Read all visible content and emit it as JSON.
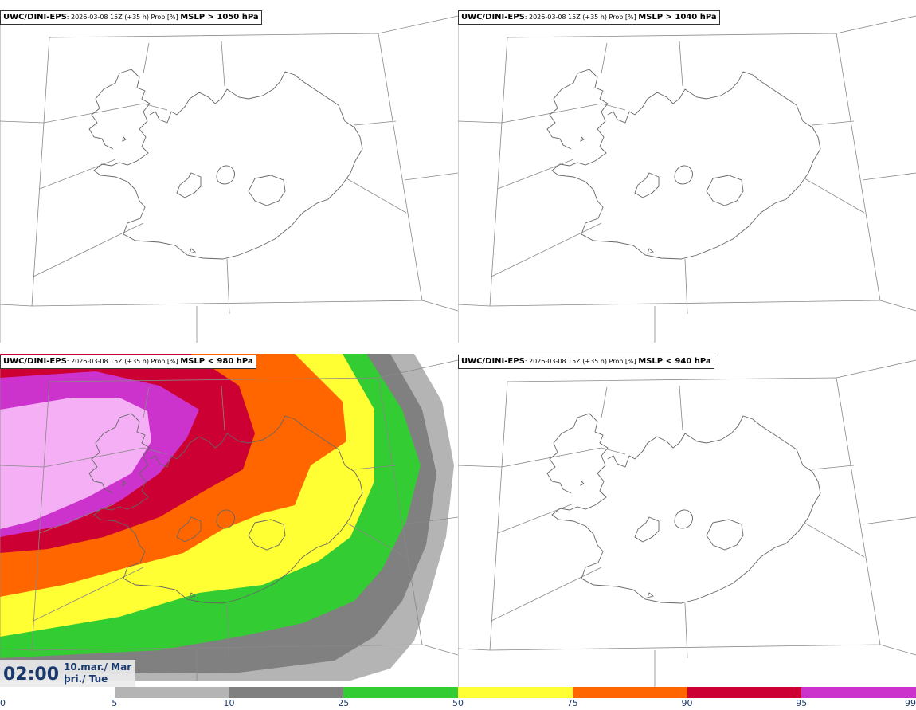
{
  "panels": [
    {
      "model": "UWC/DINI-EPS",
      "meta": ": 2026-03-08 15Z (+35 h) Prob [%] ",
      "param": "MSLP > 1050 hPa"
    },
    {
      "model": "UWC/DINI-EPS",
      "meta": ": 2026-03-08 15Z (+35 h) Prob [%] ",
      "param": "MSLP > 1040 hPa"
    },
    {
      "model": "UWC/DINI-EPS",
      "meta": ": 2026-03-08 15Z (+35 h) Prob [%] ",
      "param": "MSLP < 980 hPa"
    },
    {
      "model": "UWC/DINI-EPS",
      "meta": ": 2026-03-08 15Z (+35 h) Prob [%] ",
      "param": "MSLP < 940 hPa"
    }
  ],
  "valid_time": {
    "time": "02:00",
    "date_line1": "10.mar./ Mar",
    "date_line2": "þri./ Tue"
  },
  "colorbar": {
    "ticks": [
      "0",
      "5",
      "10",
      "25",
      "50",
      "75",
      "90",
      "95",
      "99"
    ],
    "colors": [
      "#ffffff",
      "#b4b4b4",
      "#808080",
      "#33cc33",
      "#ffff33",
      "#ff6600",
      "#cc0033",
      "#cc33cc",
      "#f0a8f0"
    ]
  },
  "colors": {
    "coast": "#666666",
    "grid": "#888888"
  }
}
